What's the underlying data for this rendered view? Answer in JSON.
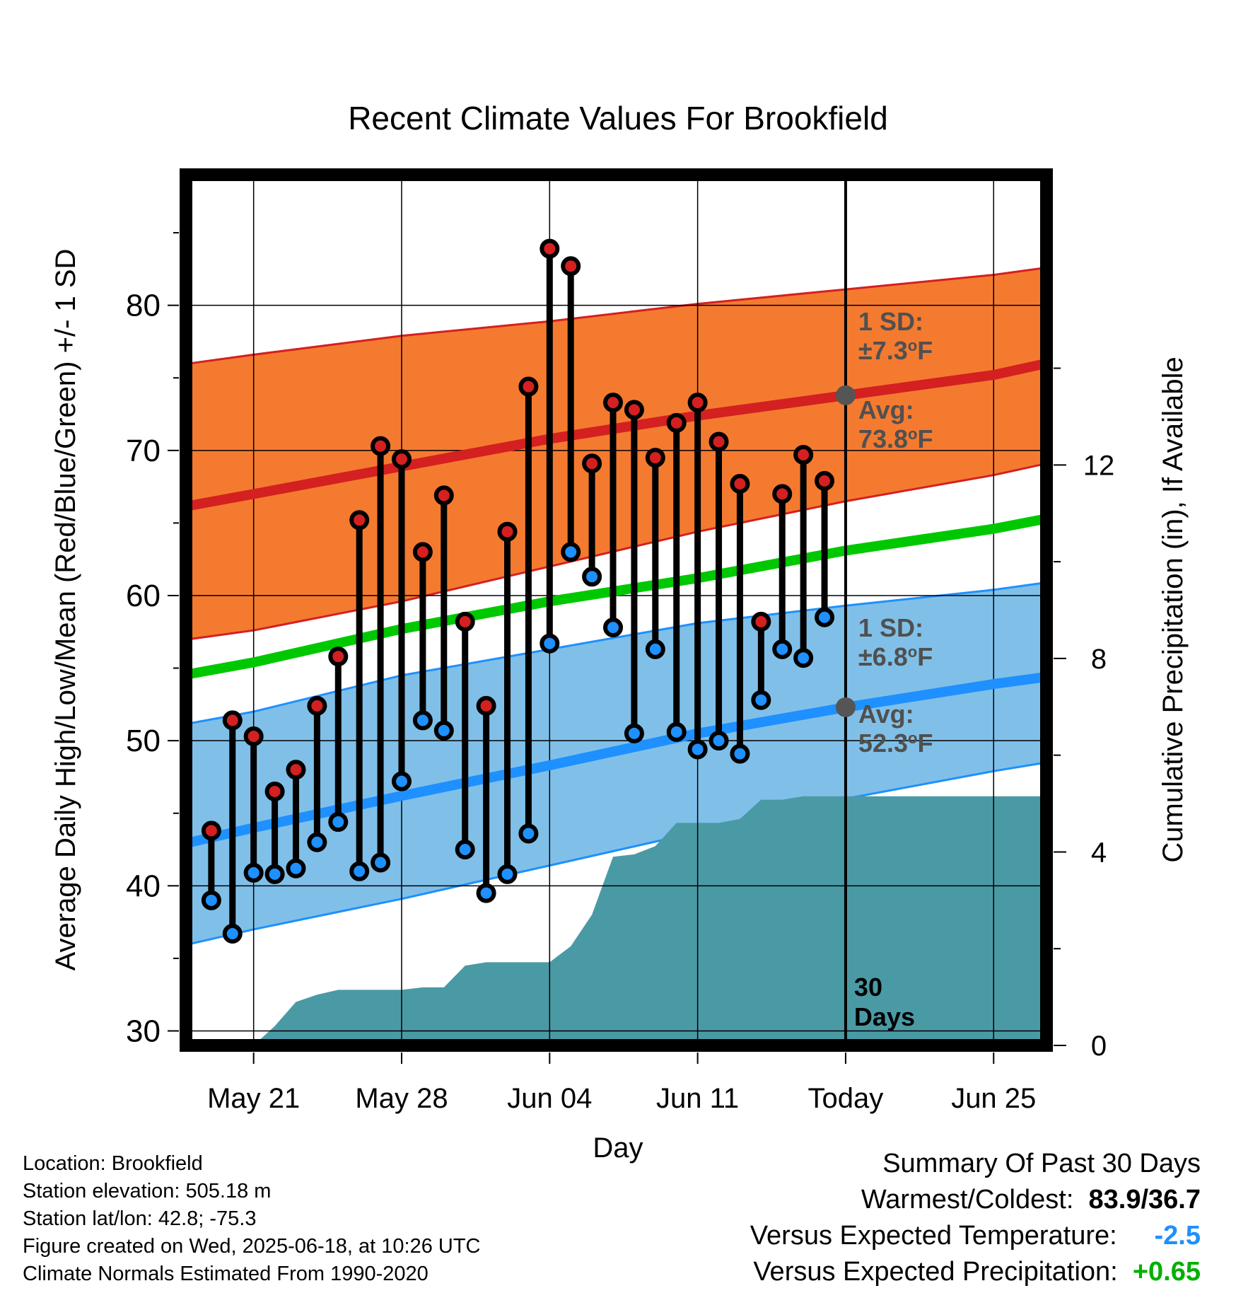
{
  "title": "Recent Climate Values For Brookfield",
  "chart_data": {
    "type": "line",
    "title": "Recent Climate Values For Brookfield",
    "xlabel": "Day",
    "ylabel": "Average Daily High/Low/Mean (Red/Blue/Green) +/- 1 SD",
    "y2label": "Cumulative Precipitation (in), If Available",
    "x_ticks": [
      "May 21",
      "May 28",
      "Jun 04",
      "Jun 11",
      "Today",
      "Jun 25"
    ],
    "x_tick_offsets": [
      -28,
      -21,
      -14,
      -7,
      0,
      7
    ],
    "xlim": [
      -31.2,
      9.5
    ],
    "ylim": [
      29,
      89
    ],
    "y_ticks": [
      "30",
      "40",
      "50",
      "60",
      "70",
      "80"
    ],
    "y2lim": [
      0,
      18
    ],
    "y2_ticks": [
      "0",
      "4",
      "8",
      "12"
    ],
    "grid": true,
    "series": [
      {
        "name": "High",
        "color": "#d42020",
        "x": [
          -30,
          -29,
          -28,
          -27,
          -26,
          -25,
          -24,
          -23,
          -22,
          -21,
          -20,
          -19,
          -18,
          -17,
          -16,
          -15,
          -14,
          -13,
          -12,
          -11,
          -10,
          -9,
          -8,
          -7,
          -6,
          -5,
          -4,
          -3,
          -2,
          -1
        ],
        "values": [
          43.8,
          51.4,
          50.3,
          46.5,
          48.0,
          52.4,
          55.8,
          65.2,
          70.3,
          69.4,
          63.0,
          66.9,
          58.2,
          52.4,
          64.4,
          74.4,
          83.9,
          82.7,
          69.1,
          73.3,
          72.8,
          69.5,
          71.9,
          73.3,
          70.6,
          67.7,
          58.2,
          67.0,
          69.7,
          67.9
        ]
      },
      {
        "name": "Low",
        "color": "#1e90ff",
        "x": [
          -30,
          -29,
          -28,
          -27,
          -26,
          -25,
          -24,
          -23,
          -22,
          -21,
          -20,
          -19,
          -18,
          -17,
          -16,
          -15,
          -14,
          -13,
          -12,
          -11,
          -10,
          -9,
          -8,
          -7,
          -6,
          -5,
          -4,
          -3,
          -2,
          -1
        ],
        "values": [
          39.0,
          36.7,
          40.9,
          40.8,
          41.2,
          43.0,
          44.4,
          41.0,
          41.6,
          47.2,
          51.4,
          50.7,
          42.5,
          39.5,
          40.8,
          43.6,
          56.7,
          63.0,
          61.3,
          57.8,
          50.5,
          56.3,
          50.6,
          49.4,
          50.0,
          49.1,
          52.8,
          56.3,
          55.7,
          58.5
        ]
      },
      {
        "name": "Normal High",
        "color": "#d42020",
        "x": [
          -31,
          -28,
          -21,
          -14,
          -7,
          0,
          7,
          9.5
        ],
        "values": [
          66.2,
          67.0,
          68.9,
          70.8,
          72.4,
          73.8,
          75.2,
          76.0
        ]
      },
      {
        "name": "Normal High + 1 SD",
        "color": "#f47a30",
        "x": [
          -31,
          -28,
          -21,
          -14,
          -7,
          0,
          7,
          9.5
        ],
        "values": [
          76.0,
          76.6,
          77.9,
          78.9,
          80.1,
          81.1,
          82.1,
          82.6
        ]
      },
      {
        "name": "Normal High - 1 SD",
        "color": "#f47a30",
        "x": [
          -31,
          -28,
          -21,
          -14,
          -7,
          0,
          7,
          9.5
        ],
        "values": [
          57.0,
          57.6,
          59.6,
          62.0,
          64.4,
          66.5,
          68.3,
          69.1
        ]
      },
      {
        "name": "Normal Mean",
        "color": "#00c800",
        "x": [
          -31,
          -28,
          -21,
          -14,
          -7,
          0,
          7,
          9.5
        ],
        "values": [
          54.6,
          55.4,
          57.7,
          59.6,
          61.2,
          63.1,
          64.6,
          65.3
        ]
      },
      {
        "name": "Normal Low",
        "color": "#1e90ff",
        "x": [
          -31,
          -28,
          -21,
          -14,
          -7,
          0,
          7,
          9.5
        ],
        "values": [
          43.0,
          44.0,
          46.2,
          48.3,
          50.5,
          52.3,
          53.9,
          54.4
        ]
      },
      {
        "name": "Normal Low + 1 SD",
        "color": "#80c0e8",
        "x": [
          -31,
          -28,
          -21,
          -14,
          -7,
          0,
          7,
          9.5
        ],
        "values": [
          51.2,
          52.0,
          54.5,
          56.3,
          58.1,
          59.3,
          60.4,
          60.9
        ]
      },
      {
        "name": "Normal Low - 1 SD",
        "color": "#80c0e8",
        "x": [
          -31,
          -28,
          -21,
          -14,
          -7,
          0,
          7,
          9.5
        ],
        "values": [
          36.0,
          37.0,
          39.1,
          41.4,
          43.7,
          46.0,
          47.9,
          48.5
        ]
      },
      {
        "name": "Cumulative Precipitation",
        "color": "#4a9aa5",
        "x": [
          -28,
          -27,
          -26,
          -25,
          -24,
          -23,
          -22,
          -21,
          -20,
          -19,
          -18,
          -17,
          -16,
          -15,
          -14,
          -13,
          -12,
          -11,
          -10,
          -9,
          -8,
          -7,
          -6,
          -5,
          -4,
          -3,
          -2,
          -1,
          0,
          9.5
        ],
        "values": [
          0.0,
          0.4,
          0.9,
          1.05,
          1.15,
          1.15,
          1.15,
          1.15,
          1.2,
          1.2,
          1.65,
          1.72,
          1.72,
          1.72,
          1.72,
          2.05,
          2.7,
          3.9,
          3.95,
          4.12,
          4.6,
          4.6,
          4.6,
          4.68,
          5.08,
          5.08,
          5.15,
          5.15,
          5.15,
          5.15
        ]
      }
    ],
    "annotations": {
      "high_sd_label": "1 SD:",
      "high_sd_value": "±7.3",
      "high_avg_label": "Avg:",
      "high_avg_value": "73.8",
      "low_sd_label": "1 SD:",
      "low_sd_value": "±6.8",
      "low_avg_label": "Avg:",
      "low_avg_value": "52.3",
      "degree_unit": "o",
      "unit_letter": "F",
      "days_number": "30",
      "days_word": "Days"
    }
  },
  "footer": {
    "location": "Location: Brookfield",
    "elevation": "Station elevation: 505.18 m",
    "latlon": "Station lat/lon: 42.8; -75.3",
    "created": "Figure created on Wed, 2025-06-18, at 10:26 UTC",
    "normals": "Climate Normals Estimated From 1990-2020"
  },
  "summary": {
    "heading": "Summary Of Past 30 Days",
    "warmest_label": "Warmest/Coldest:",
    "warmest_value": "83.9/36.7",
    "temp_label": "Versus Expected Temperature:",
    "temp_value": "-2.5",
    "temp_color": "#1e90ff",
    "precip_label": "Versus Expected Precipitation:",
    "precip_value": "+0.65",
    "precip_color": "#00b000"
  }
}
